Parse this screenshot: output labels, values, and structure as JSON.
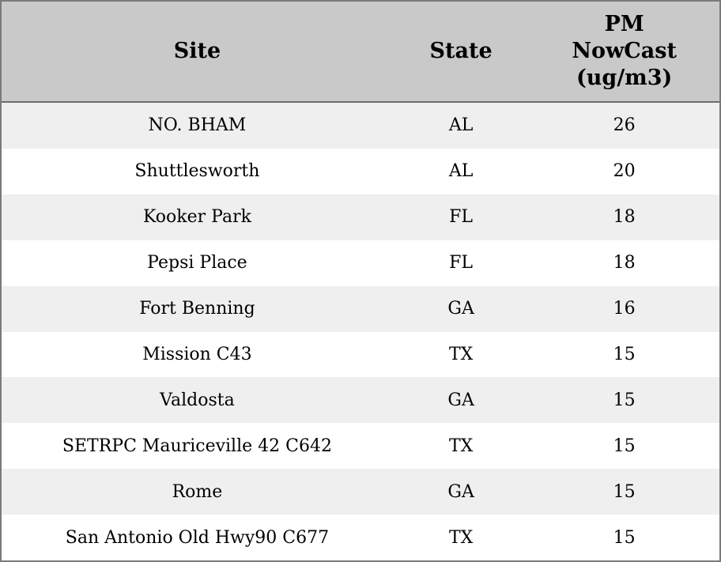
{
  "table": {
    "header": {
      "site": "Site",
      "state": "State",
      "pm": "PM\nNowCast\n(ug/m3)"
    }
  },
  "colors": {
    "header_bg": "#c9c9c9",
    "stripe_bg": "#efefef",
    "row_bg": "#ffffff",
    "border": "#7a7a7a",
    "text": "#000000"
  },
  "chart_data": {
    "type": "table",
    "title": "",
    "columns": [
      "Site",
      "State",
      "PM NowCast (ug/m3)"
    ],
    "rows": [
      {
        "site": "NO. BHAM",
        "state": "AL",
        "value": "26"
      },
      {
        "site": "Shuttlesworth",
        "state": "AL",
        "value": "20"
      },
      {
        "site": "Kooker Park",
        "state": "FL",
        "value": "18"
      },
      {
        "site": "Pepsi Place",
        "state": "FL",
        "value": "18"
      },
      {
        "site": "Fort Benning",
        "state": "GA",
        "value": "16"
      },
      {
        "site": "Mission C43",
        "state": "TX",
        "value": "15"
      },
      {
        "site": "Valdosta",
        "state": "GA",
        "value": "15"
      },
      {
        "site": "SETRPC Mauriceville 42 C642",
        "state": "TX",
        "value": "15"
      },
      {
        "site": "Rome",
        "state": "GA",
        "value": "15"
      },
      {
        "site": "San Antonio Old Hwy90 C677",
        "state": "TX",
        "value": "15"
      }
    ]
  }
}
